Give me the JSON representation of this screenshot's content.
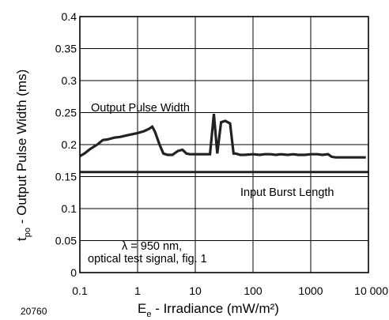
{
  "chart_data": {
    "type": "line",
    "x_scale": "log",
    "xlim": [
      0.1,
      10000
    ],
    "ylim": [
      0,
      0.4
    ],
    "grid": true,
    "xlabel": {
      "main": "E",
      "sub": "e",
      "rest": " - Irradiance (mW/m²)"
    },
    "ylabel": {
      "main": "t",
      "sub": "po",
      "rest": " - Output Pulse Width (ms)"
    },
    "x_ticks": [
      {
        "value": 0.1,
        "label": "0.1"
      },
      {
        "value": 1,
        "label": "1"
      },
      {
        "value": 10,
        "label": "10"
      },
      {
        "value": 100,
        "label": "100"
      },
      {
        "value": 1000,
        "label": "1000"
      },
      {
        "value": 10000,
        "label": "10 000"
      }
    ],
    "y_ticks": [
      {
        "value": 0,
        "label": "0"
      },
      {
        "value": 0.05,
        "label": "0.05"
      },
      {
        "value": 0.1,
        "label": "0.1"
      },
      {
        "value": 0.15,
        "label": "0.15"
      },
      {
        "value": 0.2,
        "label": "0.2"
      },
      {
        "value": 0.25,
        "label": "0.25"
      },
      {
        "value": 0.3,
        "label": "0.3"
      },
      {
        "value": 0.35,
        "label": "0.35"
      },
      {
        "value": 0.4,
        "label": "0.4"
      }
    ],
    "series": [
      {
        "name": "Output Pulse Width",
        "color": "#222222",
        "x": [
          0.1,
          0.12,
          0.15,
          0.2,
          0.25,
          0.3,
          0.4,
          0.5,
          0.7,
          1.0,
          1.3,
          1.6,
          1.8,
          2.0,
          2.4,
          2.8,
          3.3,
          4.0,
          5.0,
          6.0,
          7.0,
          8.0,
          10,
          14,
          18,
          21,
          24,
          28,
          33,
          40,
          46,
          50,
          55,
          60,
          70,
          100,
          130,
          160,
          200,
          250,
          300,
          400,
          500,
          600,
          800,
          1000,
          1300,
          1600,
          2000,
          2300,
          2700,
          3500,
          5000,
          7000,
          9000
        ],
        "y": [
          0.182,
          0.186,
          0.193,
          0.2,
          0.207,
          0.208,
          0.211,
          0.212,
          0.215,
          0.218,
          0.221,
          0.225,
          0.228,
          0.22,
          0.2,
          0.186,
          0.184,
          0.184,
          0.19,
          0.192,
          0.186,
          0.185,
          0.185,
          0.185,
          0.185,
          0.248,
          0.186,
          0.235,
          0.237,
          0.233,
          0.186,
          0.186,
          0.185,
          0.184,
          0.184,
          0.185,
          0.184,
          0.185,
          0.185,
          0.184,
          0.185,
          0.184,
          0.185,
          0.184,
          0.184,
          0.185,
          0.185,
          0.184,
          0.185,
          0.181,
          0.18,
          0.18,
          0.18,
          0.18,
          0.18
        ]
      },
      {
        "name": "Input Burst Length",
        "color": "#222222",
        "x": [
          0.1,
          10000
        ],
        "y": [
          0.157,
          0.157
        ]
      }
    ],
    "annotations": {
      "output_label": "Output Pulse Width",
      "input_label": "Input Burst Length",
      "cond_line1": "λ = 950 nm,",
      "cond_line2": "optical test signal, fig. 1"
    },
    "figure_id": "20760"
  }
}
